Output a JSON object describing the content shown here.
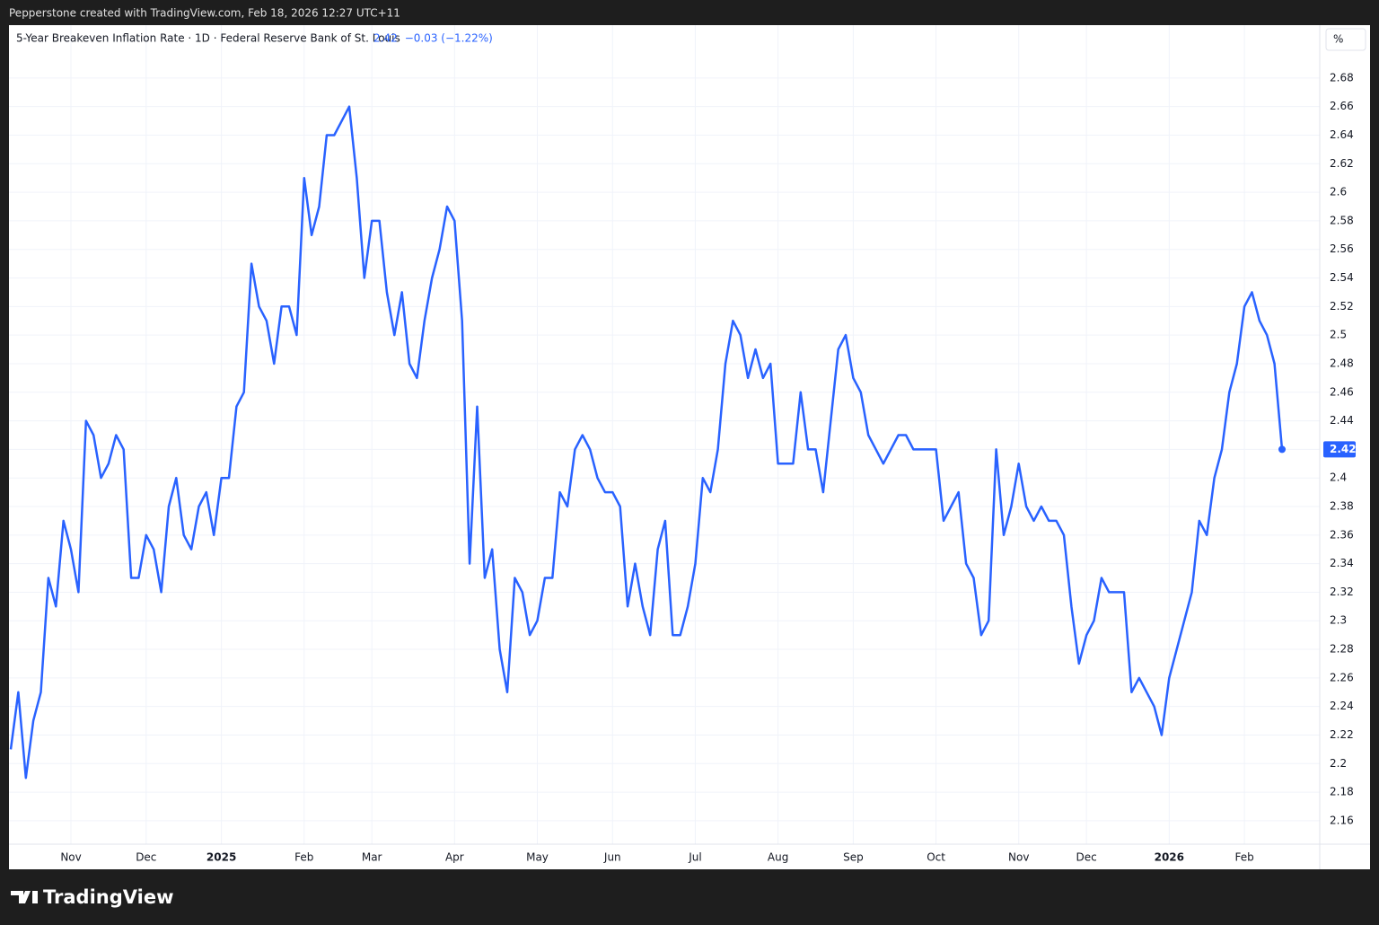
{
  "header": {
    "text": "Pepperstone created with TradingView.com, Feb 18, 2026 12:27 UTC+11"
  },
  "footer": {
    "logo": "TradingView"
  },
  "chart_data": {
    "type": "line",
    "title": "5-Year Breakeven Inflation Rate · 1D · Federal Reserve Bank of St. Louis",
    "change": "−0.03 (−1.22%)",
    "unit": "%",
    "color": "#2962ff",
    "grid": true,
    "categories": [
      null,
      null,
      null,
      null,
      null,
      null,
      null,
      null,
      "Nov",
      null,
      null,
      null,
      null,
      null,
      null,
      null,
      null,
      null,
      "Dec",
      null,
      null,
      null,
      null,
      null,
      null,
      null,
      null,
      null,
      "2025",
      null,
      null,
      null,
      null,
      null,
      null,
      null,
      null,
      null,
      null,
      "Feb",
      null,
      null,
      null,
      null,
      null,
      null,
      null,
      null,
      "Mar",
      null,
      null,
      null,
      null,
      null,
      null,
      null,
      null,
      null,
      null,
      "Apr",
      null,
      null,
      null,
      null,
      null,
      null,
      null,
      null,
      null,
      null,
      "May",
      null,
      null,
      null,
      null,
      null,
      null,
      null,
      null,
      null,
      "Jun",
      null,
      null,
      null,
      null,
      null,
      null,
      null,
      null,
      null,
      null,
      "Jul",
      null,
      null,
      null,
      null,
      null,
      null,
      null,
      null,
      null,
      null,
      "Aug",
      null,
      null,
      null,
      null,
      null,
      null,
      null,
      null,
      null,
      "Sep",
      null,
      null,
      null,
      null,
      null,
      null,
      null,
      null,
      null,
      null,
      "Oct",
      null,
      null,
      null,
      null,
      null,
      null,
      null,
      null,
      null,
      null,
      "Nov",
      null,
      null,
      null,
      null,
      null,
      null,
      null,
      null,
      "Dec",
      null,
      null,
      null,
      null,
      null,
      null,
      null,
      null,
      null,
      null,
      "2026",
      null,
      null,
      null,
      null,
      null,
      null,
      null,
      null,
      null,
      "Feb",
      null,
      null,
      null,
      null,
      null
    ],
    "values": [
      2.21,
      2.25,
      2.19,
      2.23,
      2.25,
      2.33,
      2.31,
      2.37,
      2.35,
      2.32,
      2.44,
      2.43,
      2.4,
      2.41,
      2.43,
      2.42,
      2.33,
      2.33,
      2.36,
      2.35,
      2.32,
      2.38,
      2.4,
      2.36,
      2.35,
      2.38,
      2.39,
      2.36,
      2.4,
      2.4,
      2.45,
      2.46,
      2.55,
      2.52,
      2.51,
      2.48,
      2.52,
      2.52,
      2.5,
      2.61,
      2.57,
      2.59,
      2.64,
      2.64,
      2.65,
      2.66,
      2.61,
      2.54,
      2.58,
      2.58,
      2.53,
      2.5,
      2.53,
      2.48,
      2.47,
      2.51,
      2.54,
      2.56,
      2.59,
      2.58,
      2.51,
      2.34,
      2.45,
      2.33,
      2.35,
      2.28,
      2.25,
      2.33,
      2.32,
      2.29,
      2.3,
      2.33,
      2.33,
      2.39,
      2.38,
      2.42,
      2.43,
      2.42,
      2.4,
      2.39,
      2.39,
      2.38,
      2.31,
      2.34,
      2.31,
      2.29,
      2.35,
      2.37,
      2.29,
      2.29,
      2.31,
      2.34,
      2.4,
      2.39,
      2.42,
      2.48,
      2.51,
      2.5,
      2.47,
      2.49,
      2.47,
      2.48,
      2.41,
      2.41,
      2.41,
      2.46,
      2.42,
      2.42,
      2.39,
      2.44,
      2.49,
      2.5,
      2.47,
      2.46,
      2.43,
      2.42,
      2.41,
      2.42,
      2.43,
      2.43,
      2.42,
      2.42,
      2.42,
      2.42,
      2.37,
      2.38,
      2.39,
      2.34,
      2.33,
      2.29,
      2.3,
      2.42,
      2.36,
      2.38,
      2.41,
      2.38,
      2.37,
      2.38,
      2.37,
      2.37,
      2.36,
      2.31,
      2.27,
      2.29,
      2.3,
      2.33,
      2.32,
      2.32,
      2.32,
      2.25,
      2.26,
      2.25,
      2.24,
      2.22,
      2.26,
      2.28,
      2.3,
      2.32,
      2.37,
      2.36,
      2.4,
      2.42,
      2.46,
      2.48,
      2.52,
      2.53,
      2.51,
      2.5,
      2.48,
      2.42
    ],
    "ylim": [
      2.126,
      2.717
    ],
    "yticks": [
      2.16,
      2.18,
      2.2,
      2.22,
      2.24,
      2.26,
      2.28,
      2.3,
      2.32,
      2.34,
      2.36,
      2.38,
      2.4,
      2.42,
      2.44,
      2.46,
      2.48,
      2.5,
      2.52,
      2.54,
      2.56,
      2.58,
      2.6,
      2.62,
      2.64,
      2.66,
      2.68
    ]
  }
}
